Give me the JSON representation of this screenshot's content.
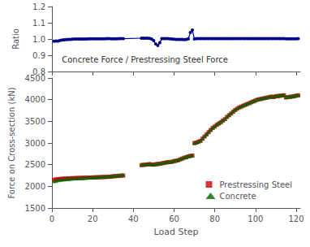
{
  "chart_data": [
    {
      "type": "line",
      "ylabel": "Ratio",
      "annotation": "Concrete Force / Prestressing Steel Force",
      "x": [
        1,
        2,
        3,
        4,
        5,
        6,
        7,
        8,
        9,
        10,
        11,
        12,
        13,
        14,
        15,
        16,
        17,
        18,
        19,
        20,
        21,
        22,
        23,
        24,
        25,
        26,
        27,
        28,
        29,
        30,
        31,
        32,
        33,
        34,
        35,
        44,
        45,
        46,
        47,
        48,
        49,
        50,
        51,
        52,
        53,
        54,
        55,
        56,
        57,
        58,
        59,
        60,
        61,
        62,
        63,
        64,
        65,
        66,
        67,
        68,
        69,
        70,
        71,
        72,
        73,
        74,
        75,
        76,
        77,
        78,
        79,
        80,
        81,
        82,
        83,
        84,
        85,
        86,
        87,
        88,
        89,
        90,
        91,
        92,
        93,
        94,
        95,
        96,
        97,
        98,
        99,
        100,
        101,
        102,
        103,
        104,
        105,
        106,
        107,
        108,
        109,
        110,
        111,
        112,
        113,
        114,
        115,
        116,
        117,
        118,
        119,
        120,
        121
      ],
      "values": [
        0.986,
        0.987,
        0.988,
        0.991,
        0.994,
        0.995,
        0.996,
        0.997,
        0.998,
        0.999,
        1.0,
        1.0,
        1.0,
        1.0,
        1.0,
        1.0,
        1.0,
        1.001,
        1.001,
        1.001,
        1.001,
        1.001,
        1.001,
        1.001,
        1.001,
        1.001,
        1.002,
        1.002,
        1.001,
        1.001,
        1.001,
        1.001,
        1.003,
        1.002,
        1.002,
        1.005,
        1.005,
        1.005,
        1.005,
        1.004,
        1.0,
        0.99,
        0.97,
        0.96,
        0.978,
        1.002,
        1.003,
        1.003,
        1.002,
        1.001,
        1.0,
        0.999,
        0.998,
        0.997,
        0.998,
        0.997,
        0.996,
        0.997,
        1.001,
        1.04,
        1.055,
        1.0,
        1.002,
        1.003,
        1.003,
        1.003,
        1.003,
        1.003,
        1.003,
        1.003,
        1.003,
        1.003,
        1.003,
        1.003,
        1.003,
        1.003,
        1.003,
        1.003,
        1.003,
        1.003,
        1.003,
        1.003,
        1.003,
        1.003,
        1.003,
        1.003,
        1.003,
        1.003,
        1.003,
        1.003,
        1.003,
        1.003,
        1.003,
        1.003,
        1.003,
        1.003,
        1.003,
        1.003,
        1.003,
        1.003,
        1.003,
        1.003,
        1.003,
        1.003,
        1.003,
        1.003,
        1.001,
        1.001,
        1.001,
        1.001,
        1.001,
        1.001,
        1.003
      ],
      "color": "#00008B",
      "marker": "circle",
      "line_style": "solid",
      "xlim": [
        0,
        122
      ],
      "xticks": [
        0,
        20,
        40,
        60,
        80,
        100,
        120
      ],
      "ylim": [
        0.8,
        1.2
      ],
      "yticks": [
        0.8,
        0.9,
        {
          "value": 1.0,
          "label": "1.0"
        },
        1.1,
        1.2
      ],
      "tick_labels": "y",
      "grid": false
    },
    {
      "type": "scatter",
      "xlabel": "Load Step",
      "ylabel": "Force on Cross-section (kN)",
      "x": [
        1,
        2,
        3,
        4,
        5,
        6,
        7,
        8,
        9,
        10,
        11,
        12,
        13,
        14,
        15,
        16,
        17,
        18,
        19,
        20,
        21,
        22,
        23,
        24,
        25,
        26,
        27,
        28,
        29,
        30,
        31,
        32,
        33,
        34,
        35,
        44,
        45,
        46,
        47,
        48,
        49,
        50,
        51,
        52,
        53,
        54,
        55,
        56,
        57,
        58,
        59,
        60,
        61,
        62,
        63,
        64,
        65,
        66,
        67,
        68,
        69,
        70,
        71,
        72,
        73,
        74,
        75,
        76,
        77,
        78,
        79,
        80,
        81,
        82,
        83,
        84,
        85,
        86,
        87,
        88,
        89,
        90,
        91,
        92,
        93,
        94,
        95,
        96,
        97,
        98,
        99,
        100,
        101,
        102,
        103,
        104,
        105,
        106,
        107,
        108,
        109,
        110,
        111,
        112,
        113,
        114,
        115,
        116,
        117,
        118,
        119,
        120,
        121
      ],
      "series": [
        {
          "name": "Prestressing Steel",
          "color": "#CC0000",
          "marker": "square",
          "values": [
            2150,
            2160,
            2165,
            2170,
            2175,
            2178,
            2180,
            2183,
            2186,
            2188,
            2190,
            2192,
            2193,
            2195,
            2197,
            2198,
            2200,
            2202,
            2204,
            2205,
            2207,
            2208,
            2210,
            2212,
            2213,
            2215,
            2218,
            2220,
            2225,
            2230,
            2235,
            2238,
            2242,
            2245,
            2248,
            2490,
            2495,
            2500,
            2505,
            2510,
            2505,
            2500,
            2510,
            2515,
            2520,
            2530,
            2540,
            2548,
            2555,
            2560,
            2565,
            2580,
            2590,
            2600,
            2620,
            2640,
            2660,
            2670,
            2690,
            2700,
            2710,
            3000,
            3010,
            3030,
            3050,
            3100,
            3150,
            3200,
            3250,
            3300,
            3350,
            3380,
            3420,
            3450,
            3480,
            3520,
            3550,
            3600,
            3640,
            3680,
            3720,
            3760,
            3790,
            3820,
            3840,
            3860,
            3880,
            3900,
            3920,
            3940,
            3960,
            3980,
            4000,
            4010,
            4020,
            4030,
            4040,
            4050,
            4060,
            4070,
            4060,
            4080,
            4080,
            4090,
            4095,
            4100,
            4050,
            4060,
            4065,
            4070,
            4080,
            4090,
            4100
          ]
        },
        {
          "name": "Concrete",
          "color": "#006600",
          "marker": "triangle",
          "values": [
            2120,
            2130,
            2140,
            2150,
            2158,
            2162,
            2168,
            2172,
            2176,
            2180,
            2184,
            2187,
            2190,
            2192,
            2195,
            2198,
            2200,
            2205,
            2208,
            2210,
            2212,
            2215,
            2218,
            2220,
            2222,
            2225,
            2228,
            2232,
            2238,
            2242,
            2248,
            2252,
            2258,
            2262,
            2268,
            2500,
            2505,
            2510,
            2520,
            2528,
            2510,
            2505,
            2515,
            2522,
            2528,
            2540,
            2550,
            2558,
            2565,
            2572,
            2578,
            2592,
            2602,
            2615,
            2635,
            2650,
            2670,
            2680,
            2700,
            2710,
            2720,
            3000,
            3015,
            3038,
            3060,
            3110,
            3160,
            3210,
            3260,
            3310,
            3358,
            3390,
            3430,
            3460,
            3490,
            3530,
            3560,
            3610,
            3650,
            3690,
            3730,
            3770,
            3800,
            3830,
            3850,
            3870,
            3890,
            3910,
            3930,
            3950,
            3970,
            3990,
            4010,
            4020,
            4030,
            4040,
            4050,
            4060,
            4070,
            4080,
            4070,
            4090,
            4095,
            4100,
            4108,
            4115,
            4060,
            4070,
            4075,
            4080,
            4090,
            4100,
            4110
          ]
        }
      ],
      "xlim": [
        0,
        122
      ],
      "xticks": [
        0,
        20,
        40,
        60,
        80,
        100,
        120
      ],
      "ylim": [
        1500,
        4500
      ],
      "yticks": [
        1500,
        2000,
        2500,
        3000,
        3500,
        4000,
        4500
      ],
      "legend": "lower right",
      "grid": false
    }
  ]
}
